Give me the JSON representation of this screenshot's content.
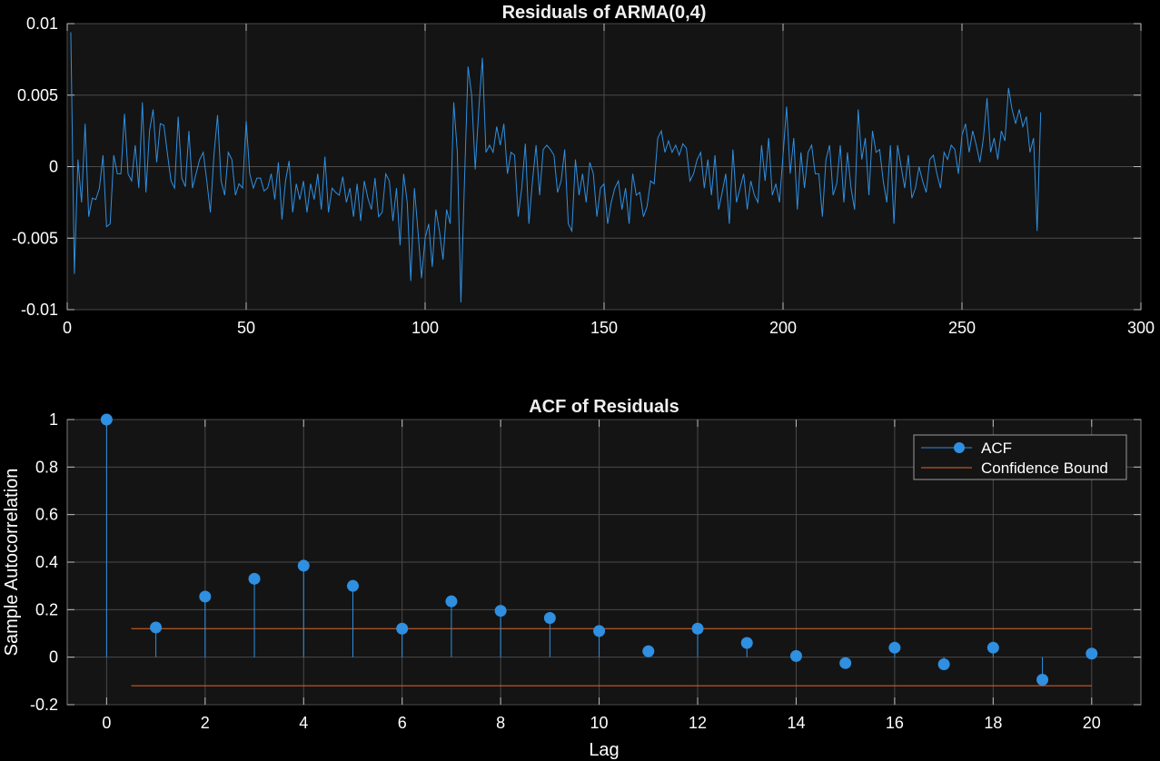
{
  "chart_data": [
    {
      "type": "line",
      "title": "Residuals of ARMA(0,4)",
      "xlabel": "",
      "ylabel": "",
      "xlim": [
        0,
        300
      ],
      "ylim": [
        -0.01,
        0.01
      ],
      "xticks": [
        0,
        50,
        100,
        150,
        200,
        250,
        300
      ],
      "xtick_labels": [
        "0",
        "50",
        "100",
        "150",
        "200",
        "250",
        "300"
      ],
      "yticks": [
        -0.01,
        -0.005,
        0,
        0.005,
        0.01
      ],
      "ytick_labels": [
        "-0.01",
        "-0.005",
        "0",
        "0.005",
        "0.01"
      ],
      "grid": true,
      "color": "#2f8fe0",
      "series": [
        {
          "x_start": 1,
          "x_step": 1,
          "values": [
            0.0094,
            -0.0075,
            0.0005,
            -0.0025,
            0.003,
            -0.0035,
            -0.0022,
            -0.0023,
            -0.0015,
            0.0008,
            -0.0042,
            -0.004,
            0.0008,
            -0.0005,
            -0.0005,
            0.0037,
            -0.0005,
            -0.001,
            0.0015,
            -0.0015,
            0.0045,
            -0.0018,
            0.0025,
            0.004,
            0.0003,
            0.003,
            0.0029,
            0.0009,
            -0.001,
            -0.0015,
            0.0035,
            -0.0008,
            -0.0014,
            0.0025,
            -0.0015,
            -0.0005,
            0.0005,
            0.001,
            -0.001,
            -0.0032,
            0.0008,
            0.0036,
            -0.001,
            -0.002,
            0.001,
            0.0005,
            -0.002,
            -0.0012,
            -0.0015,
            0.0032,
            -0.0005,
            -0.0015,
            -0.0008,
            -0.0008,
            -0.0017,
            -0.0015,
            -0.0005,
            -0.0023,
            0.0003,
            -0.0037,
            -0.001,
            0.0004,
            -0.0032,
            -0.0012,
            -0.0023,
            -0.001,
            -0.0032,
            -0.0012,
            -0.0023,
            -0.0005,
            -0.003,
            0.0007,
            -0.0032,
            -0.0015,
            -0.0018,
            -0.002,
            -0.0007,
            -0.0025,
            -0.0015,
            -0.0035,
            -0.0012,
            -0.0038,
            -0.001,
            -0.0022,
            -0.003,
            -0.0008,
            -0.0035,
            -0.0032,
            -0.0005,
            -0.001,
            -0.0038,
            -0.0015,
            -0.0055,
            -0.0005,
            -0.0025,
            -0.008,
            -0.0015,
            -0.0045,
            -0.0078,
            -0.005,
            -0.004,
            -0.007,
            -0.003,
            -0.0045,
            -0.0065,
            -0.003,
            -0.004,
            0.0045,
            0.001,
            -0.0095,
            -0.001,
            0.007,
            0.005,
            -0.0002,
            0.004,
            0.0076,
            0.001,
            0.0015,
            0.001,
            0.0028,
            0.0015,
            0.003,
            -0.0005,
            0.001,
            0.0008,
            -0.0035,
            -0.0015,
            0.0016,
            -0.004,
            -0.001,
            0.0015,
            -0.002,
            0.0012,
            0.0015,
            0.0012,
            0.0008,
            -0.0018,
            -0.001,
            0.0012,
            -0.004,
            -0.0045,
            0.0005,
            -0.002,
            -0.0005,
            -0.0025,
            0.0003,
            -0.0005,
            -0.0035,
            -0.0015,
            -0.0012,
            -0.004,
            -0.0025,
            -0.0015,
            -0.001,
            -0.003,
            -0.0015,
            -0.004,
            -0.0005,
            -0.002,
            -0.0018,
            -0.0035,
            -0.0028,
            -0.001,
            -0.0012,
            0.002,
            0.0025,
            0.001,
            0.0018,
            0.001,
            0.0015,
            0.0008,
            0.0016,
            0.0013,
            -0.001,
            -0.0005,
            0.0005,
            0.001,
            -0.0015,
            0.0005,
            -0.002,
            0.0008,
            -0.003,
            -0.0018,
            -0.0005,
            -0.004,
            0.0012,
            -0.0025,
            -0.0015,
            -0.0005,
            -0.003,
            -0.001,
            -0.002,
            -0.0025,
            0.0015,
            -0.001,
            0.002,
            -0.002,
            -0.0012,
            -0.0025,
            0.0008,
            0.0042,
            -0.0005,
            0.002,
            -0.003,
            0.001,
            -0.0015,
            0.001,
            0.0015,
            -0.0005,
            -0.0005,
            -0.0035,
            0.0005,
            0.0015,
            -0.002,
            -0.0012,
            0.0015,
            -0.0025,
            0.001,
            -0.0015,
            -0.003,
            0.004,
            0.0005,
            0.002,
            -0.002,
            0.0025,
            0.001,
            0.0012,
            -0.001,
            -0.0025,
            0.0015,
            -0.004,
            0.0015,
            0.0,
            -0.0015,
            0.0008,
            -0.0022,
            -0.0015,
            0.0,
            -0.001,
            -0.0018,
            0.0005,
            0.0008,
            -0.0005,
            -0.0015,
            0.001,
            0.0005,
            0.0015,
            0.0012,
            -0.0005,
            0.0022,
            0.003,
            0.001,
            0.0025,
            0.0015,
            0.0003,
            0.002,
            0.0048,
            0.001,
            0.002,
            0.0005,
            0.0025,
            0.0018,
            0.0055,
            0.004,
            0.003,
            0.004,
            0.0028,
            0.0035,
            0.001,
            0.002,
            -0.0045,
            0.0038
          ]
        }
      ]
    },
    {
      "type": "stem",
      "title": "ACF of Residuals",
      "xlabel": "Lag",
      "ylabel": "Sample Autocorrelation",
      "xlim": [
        -0.8,
        21
      ],
      "ylim": [
        -0.2,
        1
      ],
      "xticks": [
        0,
        2,
        4,
        6,
        8,
        10,
        12,
        14,
        16,
        18,
        20
      ],
      "xtick_labels": [
        "0",
        "2",
        "4",
        "6",
        "8",
        "10",
        "12",
        "14",
        "16",
        "18",
        "20"
      ],
      "yticks": [
        -0.2,
        0,
        0.2,
        0.4,
        0.6,
        0.8,
        1
      ],
      "ytick_labels": [
        "-0.2",
        "0",
        "0.2",
        "0.4",
        "0.6",
        "0.8",
        "1"
      ],
      "grid": true,
      "legend_position": "top-right",
      "series": [
        {
          "name": "ACF",
          "color": "#2f8fe0",
          "x": [
            0,
            1,
            2,
            3,
            4,
            5,
            6,
            7,
            8,
            9,
            10,
            11,
            12,
            13,
            14,
            15,
            16,
            17,
            18,
            19,
            20
          ],
          "values": [
            1.0,
            0.125,
            0.255,
            0.33,
            0.385,
            0.3,
            0.12,
            0.235,
            0.195,
            0.165,
            0.11,
            0.025,
            0.12,
            0.06,
            0.005,
            -0.025,
            0.04,
            -0.03,
            0.04,
            -0.095,
            0.015
          ]
        },
        {
          "name": "Confidence Bound",
          "color": "#e0662a",
          "x_range": [
            0.5,
            20
          ],
          "upper": 0.12,
          "lower": -0.12
        }
      ]
    }
  ]
}
